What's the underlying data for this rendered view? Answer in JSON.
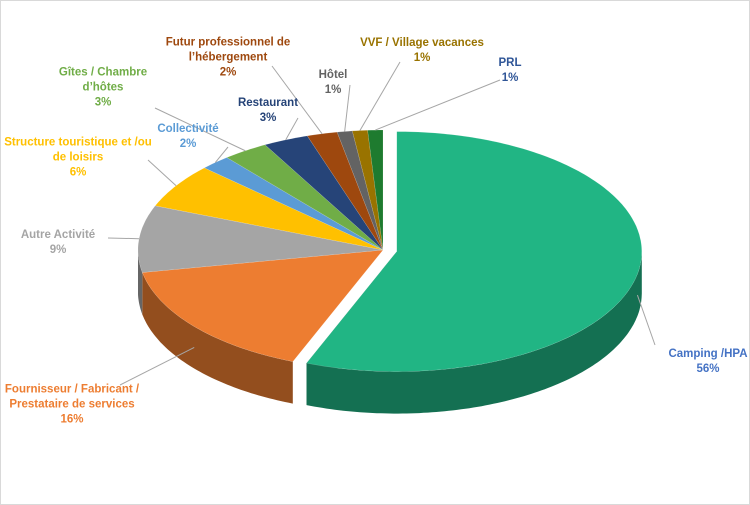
{
  "chart_data": {
    "type": "pie",
    "categories": [
      "Camping /HPA",
      "Fournisseur / Fabricant / Prestataire de services",
      "Autre Activité",
      "Structure touristique et /ou de loisirs",
      "Collectivité",
      "Gîtes / Chambre d’hôtes",
      "Restaurant",
      "Futur professionnel de l’hébergement",
      "Hôtel",
      "VVF / Village vacances",
      "PRL"
    ],
    "values": [
      56,
      16,
      9,
      6,
      2,
      3,
      3,
      2,
      1,
      1,
      1
    ],
    "value_labels": [
      "56%",
      "16%",
      "9%",
      "6%",
      "2%",
      "3%",
      "3%",
      "2%",
      "1%",
      "1%",
      "1%"
    ],
    "colors": [
      "#21b584",
      "#ed7d31",
      "#a5a5a5",
      "#ffc000",
      "#5b9bd5",
      "#70ad47",
      "#264478",
      "#9e480e",
      "#636363",
      "#997300",
      "#1e7b2f"
    ],
    "label_colors": [
      "#4472c4",
      "#ed7d31",
      "#a5a5a5",
      "#ffc000",
      "#5b9bd5",
      "#70ad47",
      "#264478",
      "#9e480e",
      "#636363",
      "#997300",
      "#2f5597"
    ]
  }
}
